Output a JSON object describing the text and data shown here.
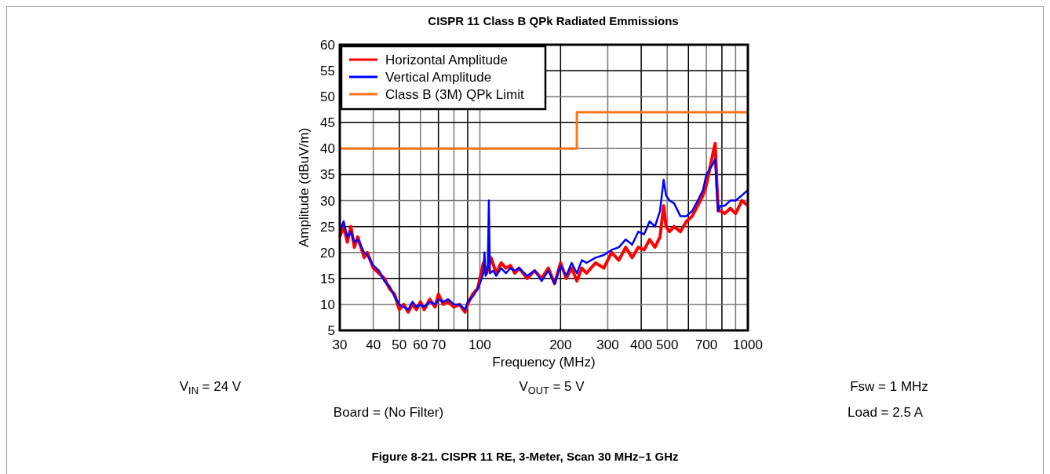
{
  "chart_data": {
    "type": "line",
    "title": "CISPR 11 Class B QPk Radiated Emmissions",
    "xlabel": "Frequency (MHz)",
    "ylabel": "Amplitude (dBuV/m)",
    "log": "x",
    "xlim": [
      30,
      1000
    ],
    "ylim": [
      5,
      60
    ],
    "xticks": [
      30,
      40,
      50,
      60,
      70,
      {
        "value": 80,
        "label": null
      },
      {
        "value": 90,
        "label": null
      },
      100,
      200,
      300,
      400,
      500,
      {
        "value": 600,
        "label": null
      },
      700,
      {
        "value": 800,
        "label": null
      },
      {
        "value": 900,
        "label": null
      },
      1000
    ],
    "yticks": [
      5,
      10,
      15,
      20,
      25,
      30,
      35,
      40,
      45,
      50,
      55,
      60
    ],
    "grid": true,
    "legend": "top left",
    "series": [
      {
        "name": "Horizontal Amplitude",
        "color": "#ff0000",
        "x": [
          30,
          31,
          32,
          33,
          34,
          35,
          37,
          38,
          40,
          42,
          44,
          46,
          48,
          50,
          52,
          54,
          56,
          58,
          60,
          62,
          65,
          68,
          70,
          73,
          76,
          80,
          84,
          88,
          90,
          94,
          98,
          100,
          103,
          106,
          110,
          115,
          120,
          125,
          130,
          135,
          140,
          150,
          160,
          170,
          180,
          190,
          200,
          210,
          220,
          230,
          240,
          250,
          270,
          290,
          310,
          330,
          350,
          370,
          390,
          410,
          430,
          450,
          470,
          485,
          495,
          510,
          530,
          560,
          590,
          620,
          650,
          680,
          700,
          720,
          740,
          755,
          765,
          775,
          790,
          820,
          860,
          900,
          950,
          1000
        ],
        "values": [
          23,
          25,
          22,
          25,
          21,
          23,
          19,
          20,
          17,
          16,
          15,
          13,
          12,
          9,
          10,
          8.5,
          10,
          9,
          10.5,
          9,
          11,
          9.5,
          12,
          10,
          10.5,
          9.5,
          10,
          8.5,
          10,
          12,
          13,
          15,
          18,
          16,
          19,
          16,
          18,
          17,
          17.5,
          16,
          17,
          15,
          16.5,
          15,
          17,
          14,
          18,
          15,
          17,
          14.5,
          17,
          16,
          18,
          17,
          20,
          18.5,
          21,
          19,
          21,
          20.5,
          22.5,
          21,
          23,
          29,
          25,
          24,
          25,
          24,
          26,
          27,
          29,
          31,
          33,
          36,
          39,
          41,
          34,
          28,
          28,
          27.5,
          28.5,
          27.5,
          30,
          29
        ]
      },
      {
        "name": "Vertical Amplitude",
        "color": "#0000ff",
        "x": [
          30,
          31,
          32,
          33,
          34,
          35,
          37,
          38,
          40,
          42,
          44,
          46,
          48,
          50,
          52,
          54,
          56,
          58,
          60,
          62,
          65,
          68,
          70,
          73,
          76,
          80,
          84,
          88,
          90,
          94,
          98,
          100,
          103,
          104,
          105,
          107,
          108,
          109,
          112,
          115,
          120,
          125,
          130,
          135,
          140,
          150,
          160,
          170,
          180,
          190,
          200,
          210,
          220,
          230,
          240,
          250,
          270,
          290,
          310,
          330,
          350,
          370,
          390,
          410,
          430,
          450,
          470,
          485,
          495,
          510,
          530,
          560,
          590,
          620,
          650,
          680,
          700,
          720,
          740,
          755,
          765,
          775,
          790,
          820,
          860,
          900,
          950,
          1000
        ],
        "values": [
          24,
          26,
          23,
          24,
          22,
          22.5,
          20,
          19.5,
          17.5,
          16.5,
          14.5,
          13.5,
          11.5,
          10,
          9.5,
          9,
          10.5,
          9.5,
          10,
          9.5,
          10.5,
          10,
          11,
          10.5,
          11,
          10,
          10,
          9,
          10.5,
          11.5,
          13,
          14,
          16,
          20,
          15.5,
          17,
          30,
          16,
          16.5,
          15.5,
          17,
          16,
          17,
          16.5,
          17,
          15.5,
          16.5,
          14.5,
          16.5,
          14,
          17.5,
          15.5,
          18,
          16,
          18.5,
          18,
          19,
          19.5,
          20.5,
          21,
          22.5,
          21.5,
          24,
          23.5,
          26,
          25,
          28,
          34,
          31,
          30,
          29.5,
          27,
          27,
          28,
          30,
          32,
          35,
          36,
          37,
          38,
          32,
          28,
          29,
          29,
          30,
          30,
          31,
          32
        ]
      },
      {
        "name": "Class B (3M) QPk Limit",
        "color": "#ff7518",
        "type": "step",
        "x": [
          30,
          230,
          1000
        ],
        "values": [
          40,
          47,
          47
        ]
      }
    ],
    "annotations": [
      "V$_{IN}$ = 24 V",
      "V$_{OUT}$ = 5 V",
      "Fsw = 1 MHz",
      "Board = (No Filter)",
      "Load = 2.5 A",
      "Figure 8-21. CISPR 11 RE, 3-Meter, Scan 30 MHz–1 GHz"
    ]
  }
}
